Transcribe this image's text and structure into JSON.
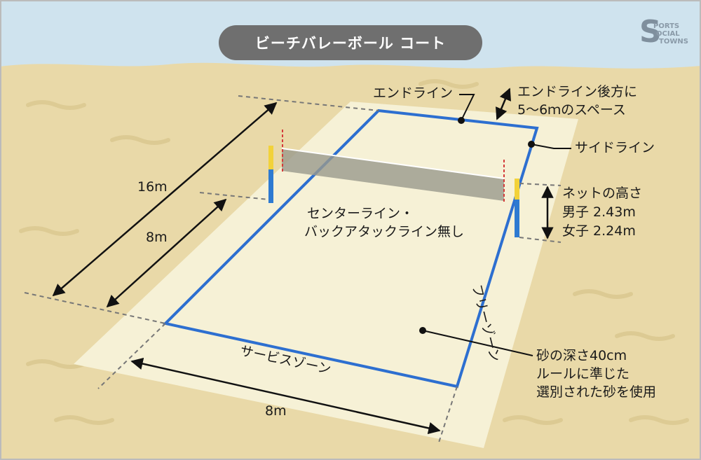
{
  "title": "ビーチバレーボール コート",
  "logo": {
    "mark": "S",
    "line1": "PORTS",
    "line2": "OCIAL",
    "line3": "TOWNS"
  },
  "labels": {
    "endline": "エンドライン",
    "endline_back_1": "エンドライン後方に",
    "endline_back_2": "5～6ｍのスペース",
    "sideline": "サイドライン",
    "net_height_title": "ネットの高さ",
    "net_height_men": "男子  2.43m",
    "net_height_women": "女子  2.24m",
    "center_line_1": "センターライン・",
    "center_line_2": "バックアタックライン無し",
    "free_zone": "フリーゾーン",
    "sand_1": "砂の深さ40cm",
    "sand_2": "ルールに準じた",
    "sand_3": "選別された砂を使用",
    "service_zone": "サービスゾーン",
    "dim_16m": "16m",
    "dim_8m_left": "8m",
    "dim_8m_bottom": "8m"
  },
  "colors": {
    "sky": "#cfe3ee",
    "sand": "#e9d9a8",
    "court_area": "#f7f2d8",
    "court_line": "#2d6fd0",
    "net": "#9a9a8c",
    "pole": "#2e7ad1",
    "pole_top": "#f2d23a",
    "title_bg": "#6f6f6f"
  },
  "icons": [
    "dimension-arrow-icon",
    "net-post-icon",
    "callout-dot-icon"
  ]
}
